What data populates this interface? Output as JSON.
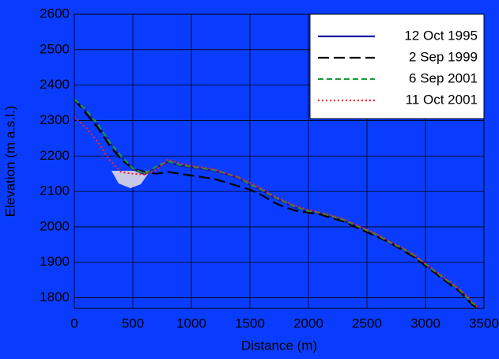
{
  "chart_data": {
    "type": "line",
    "x_label": "Distance (m)",
    "y_label": "Elevation (m a.s.l.)",
    "x": [
      0,
      100,
      200,
      300,
      400,
      500,
      600,
      700,
      800,
      900,
      1000,
      1100,
      1200,
      1300,
      1400,
      1500,
      1600,
      1700,
      1800,
      1900,
      2000,
      2100,
      2200,
      2300,
      2400,
      2500,
      2600,
      2700,
      2800,
      2900,
      3000,
      3100,
      3200,
      3300,
      3400,
      3450
    ],
    "series": [
      {
        "name": "12 Oct 1995",
        "color": "#1a1aa8",
        "dash": "none",
        "values": [
          2358,
          2328,
          2288,
          2238,
          2198,
          2163,
          2148,
          2168,
          2183,
          2173,
          2168,
          2163,
          2158,
          2148,
          2138,
          2118,
          2103,
          2083,
          2068,
          2053,
          2043,
          2038,
          2028,
          2018,
          2003,
          1988,
          1973,
          1953,
          1938,
          1918,
          1893,
          1868,
          1843,
          1818,
          1783,
          1773
        ]
      },
      {
        "name": "2 Sep 1999",
        "color": "#000000",
        "dash": "14 6",
        "values": [
          2360,
          2320,
          2280,
          2230,
          2190,
          2165,
          2155,
          2150,
          2155,
          2150,
          2145,
          2140,
          2135,
          2125,
          2115,
          2105,
          2090,
          2070,
          2055,
          2045,
          2040,
          2035,
          2025,
          2015,
          2000,
          1985,
          1970,
          1955,
          1935,
          1915,
          1890,
          1865,
          1840,
          1815,
          1780,
          1770
        ]
      },
      {
        "name": "6 Sep 2001",
        "color": "#1a9a3a",
        "dash": "7 4",
        "values": [
          2360,
          2330,
          2290,
          2240,
          2200,
          2165,
          2150,
          2170,
          2185,
          2175,
          2170,
          2165,
          2160,
          2150,
          2140,
          2120,
          2105,
          2085,
          2070,
          2055,
          2045,
          2040,
          2030,
          2020,
          2005,
          1990,
          1975,
          1955,
          1940,
          1920,
          1895,
          1870,
          1845,
          1820,
          1785,
          1775
        ]
      },
      {
        "name": "11 Oct 2001",
        "color": "#ff2020",
        "dash": "2 3",
        "values": [
          2310,
          2280,
          2240,
          2190,
          2155,
          2150,
          2148,
          2160,
          2190,
          2180,
          2172,
          2168,
          2162,
          2150,
          2140,
          2125,
          2108,
          2088,
          2072,
          2058,
          2048,
          2040,
          2032,
          2022,
          2007,
          1992,
          1977,
          1958,
          1942,
          1922,
          1897,
          1872,
          1848,
          1822,
          1790,
          1772
        ]
      }
    ],
    "xlim": [
      0,
      3500
    ],
    "xticks": [
      0,
      500,
      1000,
      1500,
      2000,
      2500,
      3000,
      3500
    ],
    "ylim": [
      1770,
      2600
    ],
    "yticks": [
      1800,
      1900,
      2000,
      2100,
      2200,
      2300,
      2400,
      2500,
      2600
    ],
    "grid": true,
    "legend": "top-right"
  }
}
